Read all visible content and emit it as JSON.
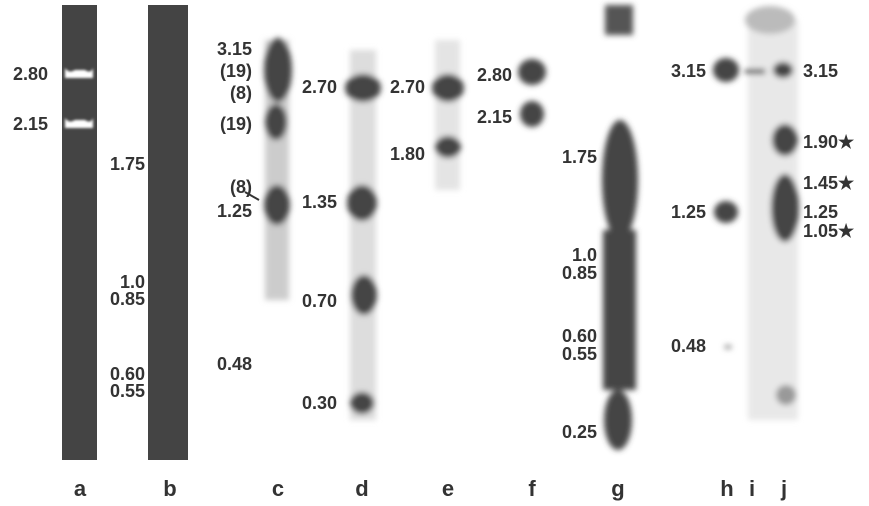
{
  "lanes": [
    {
      "label": "a",
      "bands": [
        "2.80",
        "2.15"
      ]
    },
    {
      "label": "b",
      "bands": [
        "1.75",
        "1.0",
        "0.85",
        "0.60",
        "0.55"
      ]
    },
    {
      "label": "c",
      "bands": [
        "3.15",
        "(19)",
        "(8)",
        "(19)",
        "(8)",
        "1.25",
        "0.48"
      ]
    },
    {
      "label": "d",
      "bands": [
        "2.70",
        "1.35",
        "0.70",
        "0.30"
      ]
    },
    {
      "label": "e",
      "bands": [
        "2.70",
        "1.80"
      ]
    },
    {
      "label": "f",
      "bands": [
        "2.80",
        "2.15"
      ]
    },
    {
      "label": "g",
      "bands": [
        "1.75",
        "1.0",
        "0.85",
        "0.60",
        "0.55",
        "0.25"
      ]
    },
    {
      "label": "h",
      "bands": [
        "3.15",
        "1.25",
        "0.48"
      ]
    },
    {
      "label": "i"
    },
    {
      "label": "j",
      "bands": [
        "3.15",
        "1.90★",
        "1.45★",
        "1.25",
        "1.05★"
      ]
    }
  ]
}
